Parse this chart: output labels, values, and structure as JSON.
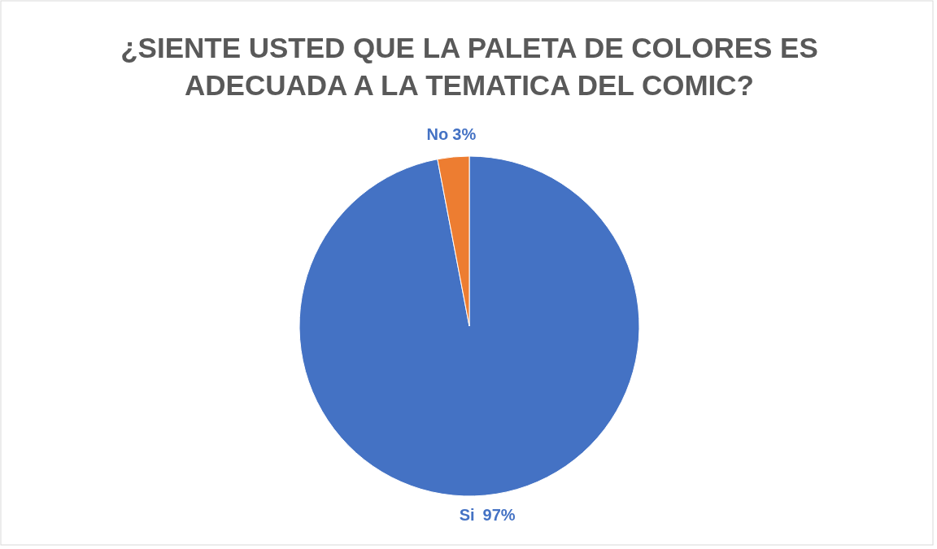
{
  "chart_data": {
    "type": "pie",
    "title": "¿SIENTE USTED QUE LA PALETA DE COLORES ES ADECUADA A LA TEMATICA DEL COMIC?",
    "categories": [
      "Si",
      "No"
    ],
    "values": [
      97,
      3
    ],
    "colors": [
      "#4472c4",
      "#ed7d31"
    ],
    "value_labels": [
      "97%",
      "3%"
    ]
  }
}
